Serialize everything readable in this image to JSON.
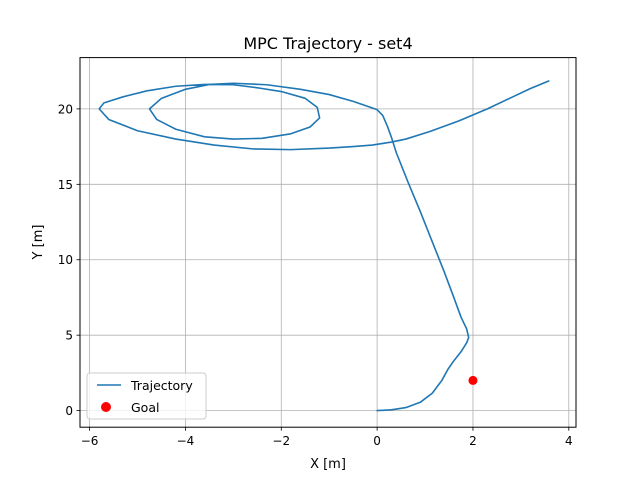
{
  "chart_data": {
    "type": "line",
    "title": "MPC Trajectory - set4",
    "xlabel": "X [m]",
    "ylabel": "Y [m]",
    "xlim": [
      -6.2,
      4.15
    ],
    "ylim": [
      -1.1,
      23.4
    ],
    "xticks": [
      -6,
      -4,
      -2,
      0,
      2,
      4
    ],
    "yticks": [
      0,
      5,
      10,
      15,
      20
    ],
    "xtick_labels": [
      "−6",
      "−4",
      "−2",
      "0",
      "2",
      "4"
    ],
    "ytick_labels": [
      "0",
      "5",
      "10",
      "15",
      "20"
    ],
    "grid": true,
    "legend_position": "lower-left",
    "colors": {
      "trajectory": "#1f77b4",
      "goal": "#ff0000",
      "grid": "#b0b0b0"
    },
    "series": [
      {
        "name": "Trajectory",
        "kind": "line",
        "x": [
          0.0,
          0.3,
          0.6,
          0.9,
          1.15,
          1.35,
          1.48,
          1.6,
          1.75,
          1.87,
          1.91,
          1.87,
          1.75,
          1.6,
          1.4,
          1.15,
          0.9,
          0.65,
          0.4,
          0.3,
          0.22,
          0.12,
          0.0,
          -0.5,
          -1.0,
          -1.6,
          -2.3,
          -3.0,
          -3.5,
          -4.0,
          -4.5,
          -4.75,
          -4.6,
          -4.2,
          -3.6,
          -3.0,
          -2.4,
          -1.8,
          -1.4,
          -1.2,
          -1.25,
          -1.5,
          -2.0,
          -2.5,
          -3.0,
          -3.6,
          -4.2,
          -4.8,
          -5.3,
          -5.7,
          -5.8,
          -5.6,
          -5.0,
          -4.2,
          -3.4,
          -2.6,
          -1.8,
          -1.0,
          -0.5,
          -0.1,
          0.1,
          0.3,
          0.6,
          1.1,
          1.7,
          2.3,
          2.8,
          3.2,
          3.58
        ],
        "y": [
          0.0,
          0.05,
          0.2,
          0.55,
          1.15,
          2.0,
          2.75,
          3.3,
          3.9,
          4.5,
          4.85,
          5.4,
          6.2,
          7.5,
          9.2,
          11.2,
          13.2,
          15.1,
          17.1,
          18.1,
          18.8,
          19.55,
          19.95,
          20.5,
          20.95,
          21.3,
          21.6,
          21.7,
          21.62,
          21.3,
          20.7,
          20.0,
          19.3,
          18.65,
          18.15,
          18.0,
          18.05,
          18.35,
          18.8,
          19.4,
          20.1,
          20.7,
          21.15,
          21.4,
          21.6,
          21.62,
          21.5,
          21.2,
          20.8,
          20.4,
          20.0,
          19.3,
          18.55,
          18.0,
          17.6,
          17.35,
          17.3,
          17.4,
          17.5,
          17.6,
          17.7,
          17.8,
          18.0,
          18.5,
          19.2,
          20.0,
          20.75,
          21.35,
          21.85
        ]
      },
      {
        "name": "Goal",
        "kind": "marker",
        "x": [
          2.0
        ],
        "y": [
          2.0
        ]
      }
    ]
  }
}
